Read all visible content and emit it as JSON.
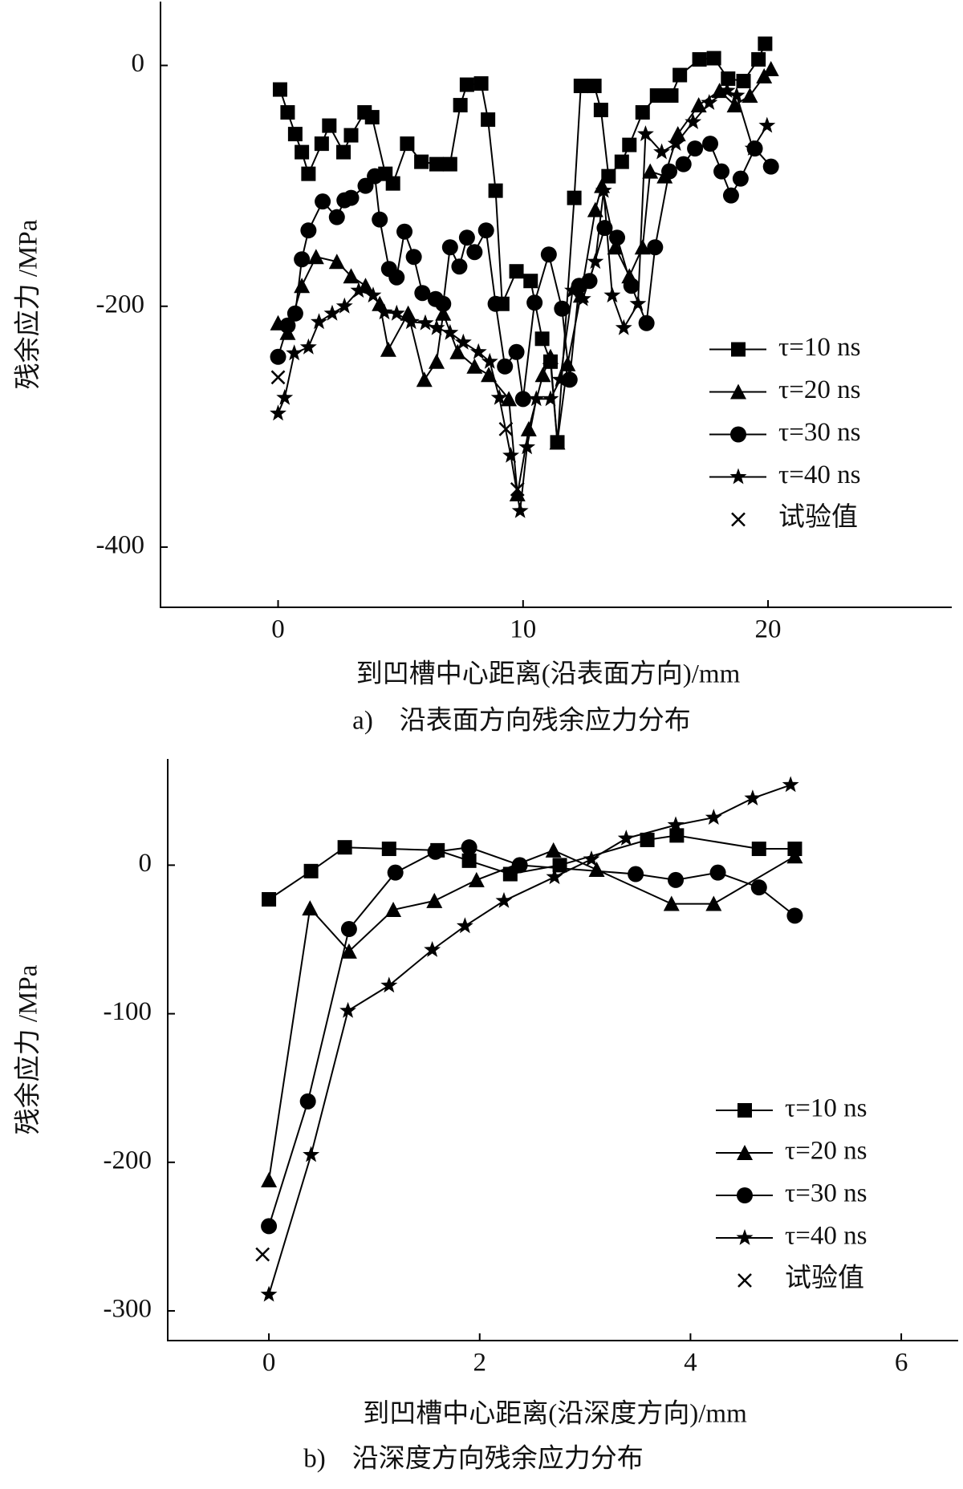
{
  "chart_data": [
    {
      "type": "line",
      "title": "a)　沿表面方向残余应力分布",
      "xlabel": "到凹槽中心距离(沿表面方向)/mm",
      "ylabel": "残余应力 /MPa",
      "xlim": [
        -4.8,
        27.5
      ],
      "ylim": [
        -450,
        53
      ],
      "xticks": [
        0,
        10,
        20
      ],
      "yticks": [
        0,
        -200,
        -400
      ],
      "legend": "center right",
      "series": [
        {
          "name": "τ=10 ns",
          "color": "#000000",
          "marker": "square",
          "x": [
            0.08,
            0.39,
            0.7,
            0.97,
            1.24,
            1.78,
            2.09,
            2.67,
            2.98,
            3.53,
            3.84,
            4.38,
            4.69,
            5.27,
            5.85,
            6.47,
            7.02,
            7.44,
            7.71,
            8.29,
            8.57,
            8.88,
            9.15,
            9.73,
            10.31,
            10.78,
            11.12,
            11.4,
            12.09,
            12.36,
            12.91,
            13.18,
            13.49,
            14.03,
            14.34,
            14.88,
            15.47,
            16.05,
            16.4,
            17.2,
            17.79,
            18.37,
            19.0,
            19.61,
            19.88
          ],
          "values": [
            -20,
            -39,
            -57,
            -72,
            -90,
            -65,
            -50,
            -72,
            -58,
            -39,
            -43,
            -90,
            -98,
            -65,
            -80,
            -82,
            -82,
            -33,
            -16,
            -15,
            -45,
            -104,
            -198,
            -171,
            -179,
            -227,
            -246,
            -313,
            -110,
            -17,
            -17,
            -37,
            -92,
            -80,
            -66,
            -39,
            -25,
            -25,
            -8,
            5,
            6,
            -11,
            -13,
            5,
            18
          ]
        },
        {
          "name": "τ=20 ns",
          "color": "#000000",
          "marker": "triangle",
          "x": [
            0,
            0.39,
            0.97,
            1.55,
            2.4,
            2.98,
            3.57,
            4.15,
            4.5,
            5.31,
            5.97,
            6.47,
            6.74,
            7.33,
            8.02,
            8.6,
            9.42,
            9.77,
            10.23,
            10.81,
            11.12,
            11.4,
            11.82,
            12.36,
            12.95,
            13.22,
            13.76,
            14.34,
            14.88,
            15.19,
            15.78,
            16.32,
            17.17,
            18.02,
            18.64,
            19.26,
            19.84,
            20.12
          ],
          "values": [
            -214,
            -222,
            -183,
            -159,
            -163,
            -175,
            -183,
            -198,
            -236,
            -206,
            -261,
            -246,
            -206,
            -238,
            -250,
            -257,
            -277,
            -356,
            -302,
            -257,
            -242,
            -313,
            -248,
            -191,
            -120,
            -100,
            -151,
            -175,
            -151,
            -88,
            -92,
            -57,
            -33,
            -21,
            -33,
            -25,
            -9,
            -3
          ]
        },
        {
          "name": "τ=30 ns",
          "color": "#000000",
          "marker": "circle",
          "x": [
            0,
            0.39,
            0.7,
            0.97,
            1.24,
            1.82,
            2.4,
            2.71,
            2.98,
            3.57,
            3.95,
            4.15,
            4.53,
            4.84,
            5.16,
            5.54,
            5.89,
            6.43,
            6.74,
            7.02,
            7.4,
            7.71,
            8.02,
            8.49,
            8.88,
            9.26,
            9.73,
            10,
            10.47,
            11.05,
            11.59,
            11.9,
            12.29,
            12.71,
            13.33,
            13.84,
            14.42,
            15.04,
            15.39,
            15.97,
            16.55,
            17.02,
            17.64,
            18.1,
            18.49,
            18.88,
            19.46,
            20.12
          ],
          "values": [
            -242,
            -216,
            -206,
            -161,
            -137,
            -113,
            -126,
            -112,
            -110,
            -100,
            -92,
            -128,
            -169,
            -176,
            -138,
            -159,
            -189,
            -194,
            -198,
            -151,
            -167,
            -143,
            -155,
            -137,
            -198,
            -250,
            -238,
            -277,
            -197,
            -157,
            -202,
            -261,
            -183,
            -179,
            -135,
            -143,
            -183,
            -214,
            -151,
            -88,
            -82,
            -69,
            -65,
            -88,
            -108,
            -94,
            -69,
            -84
          ]
        },
        {
          "name": "τ=40 ns",
          "color": "#000000",
          "marker": "star",
          "x": [
            0,
            0.27,
            0.66,
            1.24,
            1.67,
            2.21,
            2.71,
            3.29,
            3.88,
            4.34,
            4.84,
            5.43,
            6.01,
            6.47,
            7.02,
            7.56,
            8.18,
            8.64,
            9.03,
            9.5,
            9.88,
            10.16,
            10.54,
            11.12,
            11.51,
            12.02,
            12.44,
            12.95,
            13.29,
            13.64,
            14.11,
            14.69,
            15.0,
            15.66,
            16.24,
            16.94,
            17.6,
            18.33,
            18.72,
            19.38,
            19.96
          ],
          "values": [
            -289,
            -276,
            -239,
            -234,
            -213,
            -206,
            -200,
            -187,
            -191,
            -205,
            -206,
            -213,
            -214,
            -218,
            -222,
            -230,
            -238,
            -246,
            -276,
            -324,
            -370,
            -317,
            -277,
            -277,
            -261,
            -187,
            -194,
            -163,
            -104,
            -191,
            -218,
            -198,
            -57,
            -72,
            -65,
            -47,
            -31,
            -21,
            -25,
            -69,
            -50
          ]
        },
        {
          "name": "试验值",
          "color": "#000000",
          "marker": "cross",
          "line": false,
          "x": [
            0,
            9.3,
            9.77
          ],
          "values": [
            -259,
            -302,
            -352
          ]
        }
      ]
    },
    {
      "type": "line",
      "title": "b)　沿深度方向残余应力分布",
      "xlabel": "到凹槽中心距离(沿深度方向)/mm",
      "ylabel": "残余应力 /MPa",
      "xlim": [
        -0.96,
        6.54
      ],
      "ylim": [
        -320,
        71.5
      ],
      "xticks": [
        0,
        2,
        4,
        6
      ],
      "yticks": [
        0,
        -100,
        -200,
        -300
      ],
      "legend": "lower right",
      "series": [
        {
          "name": "τ=10 ns",
          "color": "#000000",
          "marker": "square",
          "x": [
            0,
            0.4,
            0.72,
            1.14,
            1.6,
            1.9,
            2.29,
            2.76,
            3.59,
            3.87,
            4.65,
            4.99
          ],
          "values": [
            -23,
            -4,
            12,
            11,
            10,
            3,
            -6,
            0,
            17,
            20,
            11,
            11
          ]
        },
        {
          "name": "τ=20 ns",
          "color": "#000000",
          "marker": "triangle",
          "x": [
            0,
            0.39,
            0.76,
            1.18,
            1.57,
            1.97,
            2.7,
            3.11,
            3.82,
            4.22,
            4.99
          ],
          "values": [
            -212,
            -29,
            -58,
            -30,
            -24,
            -10,
            10,
            -3,
            -26,
            -26,
            6
          ]
        },
        {
          "name": "τ=30 ns",
          "color": "#000000",
          "marker": "circle",
          "x": [
            0,
            0.37,
            0.76,
            1.2,
            1.58,
            1.9,
            2.38,
            3.48,
            3.86,
            4.26,
            4.65,
            4.99
          ],
          "values": [
            -243,
            -159,
            -43,
            -5,
            9,
            12,
            0,
            -6,
            -10,
            -5,
            -15,
            -34
          ]
        },
        {
          "name": "τ=40 ns",
          "color": "#000000",
          "marker": "star",
          "x": [
            0,
            0.4,
            0.75,
            1.14,
            1.55,
            1.86,
            2.23,
            2.71,
            3.06,
            3.39,
            3.86,
            4.22,
            4.59,
            4.95
          ],
          "values": [
            -289,
            -195,
            -98,
            -81,
            -57,
            -41,
            -24,
            -8,
            4,
            18,
            27,
            32,
            45,
            54
          ]
        },
        {
          "name": "试验值",
          "color": "#000000",
          "marker": "cross",
          "line": false,
          "x": [
            -0.06
          ],
          "values": [
            -262
          ]
        }
      ]
    }
  ]
}
